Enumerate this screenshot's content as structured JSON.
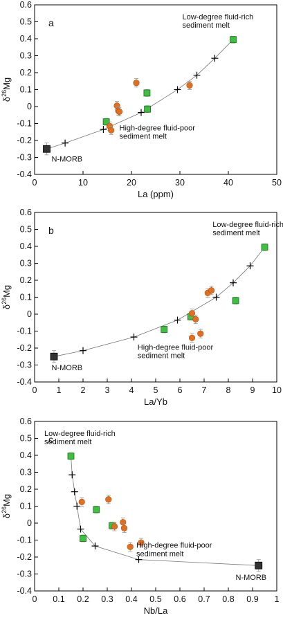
{
  "figure": {
    "panel_ylabel_main": "δ",
    "panel_ylabel_sup": "26",
    "panel_ylabel_tail": "Mg"
  },
  "chart_data": [
    {
      "type": "scatter",
      "panel_label": "a",
      "xlabel": "La (ppm)",
      "ylabel": "δ26Mg",
      "xlim": [
        0,
        50
      ],
      "ylim": [
        -0.4,
        0.6
      ],
      "x_ticks": [
        0,
        10,
        20,
        30,
        40,
        50
      ],
      "y_ticks": [
        -0.4,
        -0.3,
        -0.2,
        -0.1,
        0,
        0.1,
        0.2,
        0.3,
        0.4,
        0.5,
        0.6
      ],
      "x_tick_labels": [
        "0",
        "10",
        "20",
        "30",
        "40",
        "50"
      ],
      "y_tick_labels": [
        "-0.4",
        "-0.3",
        "-0.2",
        "-0.1",
        "0",
        "0.1",
        "0.2",
        "0.3",
        "0.4",
        "0.5",
        "0.6"
      ],
      "annotations": [
        {
          "text": "Low-degree fluid-rich",
          "x": 30.5,
          "y": 0.515
        },
        {
          "text": "sediment melt",
          "x": 30.5,
          "y": 0.465
        },
        {
          "text": "High-degree fluid-poor",
          "x": 17.5,
          "y": -0.14
        },
        {
          "text": "sediment melt",
          "x": 17.5,
          "y": -0.19
        },
        {
          "text": "N-MORB",
          "x": 3.5,
          "y": -0.325
        }
      ],
      "series": [
        {
          "marker": "cross",
          "color": "#000000",
          "line": true,
          "x": [
            6.3,
            14.2,
            22.0,
            29.5,
            33.5,
            37.2
          ],
          "y": [
            -0.215,
            -0.135,
            -0.035,
            0.1,
            0.185,
            0.285
          ]
        },
        {
          "marker": "square",
          "color": "#3fbf3f",
          "err": 0.02,
          "x": [
            14.8,
            23.2,
            23.3,
            41.0
          ],
          "y": [
            -0.09,
            0.08,
            -0.015,
            0.395
          ]
        },
        {
          "marker": "circle",
          "color": "#e07020",
          "err": 0.025,
          "x": [
            15.5,
            15.8,
            17.0,
            17.3,
            17.5,
            21.0,
            32.0
          ],
          "y": [
            -0.115,
            -0.14,
            0.005,
            -0.025,
            -0.03,
            0.14,
            0.125
          ]
        },
        {
          "marker": "bigsquare",
          "color": "#333333",
          "err": 0.035,
          "x": [
            2.5
          ],
          "y": [
            -0.25
          ]
        }
      ],
      "trend": {
        "x": [
          2.5,
          6.3,
          14.2,
          22.0,
          29.5,
          33.5,
          37.2,
          41.0
        ],
        "y": [
          -0.25,
          -0.215,
          -0.135,
          -0.035,
          0.1,
          0.185,
          0.285,
          0.395
        ]
      }
    },
    {
      "type": "scatter",
      "panel_label": "b",
      "xlabel": "La/Yb",
      "ylabel": "δ26Mg",
      "xlim": [
        0,
        10
      ],
      "ylim": [
        -0.4,
        0.6
      ],
      "x_ticks": [
        0,
        1,
        2,
        3,
        4,
        5,
        6,
        7,
        8,
        9,
        10
      ],
      "y_ticks": [
        -0.4,
        -0.3,
        -0.2,
        -0.1,
        0,
        0.1,
        0.2,
        0.3,
        0.4,
        0.5,
        0.6
      ],
      "x_tick_labels": [
        "0",
        "1",
        "2",
        "3",
        "4",
        "5",
        "6",
        "7",
        "8",
        "9",
        "10"
      ],
      "y_tick_labels": [
        "-0.4",
        "-0.3",
        "-0.2",
        "-0.1",
        "0",
        "0.1",
        "0.2",
        "0.3",
        "0.4",
        "0.5",
        "0.6"
      ],
      "annotations": [
        {
          "text": "Low-degree fluid-rich",
          "x": 7.35,
          "y": 0.515
        },
        {
          "text": "sediment melt",
          "x": 7.35,
          "y": 0.465
        },
        {
          "text": "High-degree fluid-poor",
          "x": 4.25,
          "y": -0.21
        },
        {
          "text": "sediment melt",
          "x": 4.25,
          "y": -0.26
        },
        {
          "text": "N-MORB",
          "x": 0.7,
          "y": -0.33
        }
      ],
      "series": [
        {
          "marker": "cross",
          "color": "#000000",
          "line": true,
          "x": [
            2.0,
            4.1,
            5.9,
            7.5,
            8.2,
            8.9
          ],
          "y": [
            -0.215,
            -0.135,
            -0.035,
            0.1,
            0.185,
            0.285
          ]
        },
        {
          "marker": "square",
          "color": "#3fbf3f",
          "err": 0.02,
          "x": [
            5.35,
            6.45,
            8.3,
            9.5
          ],
          "y": [
            -0.09,
            -0.015,
            0.08,
            0.395
          ]
        },
        {
          "marker": "circle",
          "color": "#e07020",
          "err": 0.025,
          "x": [
            6.5,
            6.5,
            6.65,
            6.85,
            7.15,
            7.3
          ],
          "y": [
            -0.14,
            0.005,
            -0.03,
            -0.115,
            0.125,
            0.14
          ]
        },
        {
          "marker": "bigsquare",
          "color": "#333333",
          "err": 0.035,
          "x": [
            0.8
          ],
          "y": [
            -0.25
          ]
        }
      ],
      "trend": {
        "x": [
          0.8,
          2.0,
          4.1,
          5.9,
          7.5,
          8.2,
          8.9,
          9.5
        ],
        "y": [
          -0.25,
          -0.215,
          -0.135,
          -0.035,
          0.1,
          0.185,
          0.285,
          0.395
        ]
      }
    },
    {
      "type": "scatter",
      "panel_label": "c",
      "xlabel": "Nb/La",
      "ylabel": "δ26Mg",
      "xlim": [
        0,
        1
      ],
      "ylim": [
        -0.4,
        0.6
      ],
      "x_ticks": [
        0,
        0.1,
        0.2,
        0.3,
        0.4,
        0.5,
        0.6,
        0.7,
        0.8,
        0.9,
        1
      ],
      "y_ticks": [
        -0.4,
        -0.3,
        -0.2,
        -0.1,
        0,
        0.1,
        0.2,
        0.3,
        0.4,
        0.5,
        0.6
      ],
      "x_tick_labels": [
        "0",
        "0.1",
        "0.2",
        "0.3",
        "0.4",
        "0.5",
        "0.6",
        "0.7",
        "0.8",
        "0.9",
        "1"
      ],
      "y_tick_labels": [
        "-0.4",
        "-0.3",
        "-0.2",
        "-0.1",
        "0",
        "0.1",
        "0.2",
        "0.3",
        "0.4",
        "0.5",
        "0.6"
      ],
      "annotations": [
        {
          "text": "Low-degree fluid-rich",
          "x": 0.04,
          "y": 0.515
        },
        {
          "text": "sediment melt",
          "x": 0.04,
          "y": 0.465
        },
        {
          "text": "High-degree fluid-poor",
          "x": 0.42,
          "y": -0.145
        },
        {
          "text": "sediment melt",
          "x": 0.42,
          "y": -0.195
        },
        {
          "text": "N-MORB",
          "x": 0.83,
          "y": -0.335
        }
      ],
      "series": [
        {
          "marker": "cross",
          "color": "#000000",
          "line": true,
          "x": [
            0.155,
            0.165,
            0.175,
            0.19,
            0.25,
            0.43
          ],
          "y": [
            0.285,
            0.185,
            0.1,
            -0.035,
            -0.135,
            -0.215
          ]
        },
        {
          "marker": "square",
          "color": "#3fbf3f",
          "err": 0.02,
          "x": [
            0.15,
            0.2,
            0.255,
            0.32
          ],
          "y": [
            0.395,
            -0.09,
            0.08,
            -0.015
          ]
        },
        {
          "marker": "circle",
          "color": "#e07020",
          "err": 0.025,
          "x": [
            0.195,
            0.305,
            0.33,
            0.365,
            0.37,
            0.395,
            0.44
          ],
          "y": [
            0.125,
            0.14,
            -0.02,
            0.005,
            -0.03,
            -0.14,
            -0.115
          ]
        },
        {
          "marker": "bigsquare",
          "color": "#333333",
          "err": 0.035,
          "x": [
            0.925
          ],
          "y": [
            -0.25
          ]
        }
      ],
      "trend": {
        "x": [
          0.15,
          0.155,
          0.165,
          0.175,
          0.19,
          0.25,
          0.43,
          0.925
        ],
        "y": [
          0.395,
          0.285,
          0.185,
          0.1,
          -0.035,
          -0.135,
          -0.215,
          -0.25
        ]
      }
    }
  ]
}
